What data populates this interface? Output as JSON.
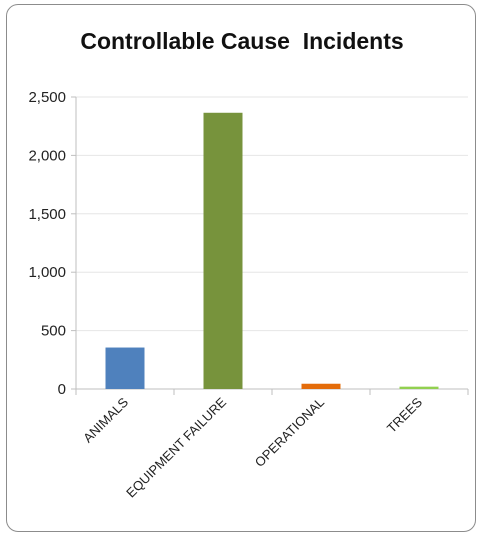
{
  "chart_data": {
    "type": "bar",
    "title": "Controllable Cause  Incidents",
    "categories": [
      "ANIMALS",
      "EQUIPMENT FAILURE",
      "OPERATIONAL",
      "TREES"
    ],
    "values": [
      355,
      2365,
      45,
      20
    ],
    "colors": [
      "#4f81bd",
      "#77933c",
      "#e46c0a",
      "#92d050"
    ],
    "ylim": [
      0,
      2500
    ],
    "yticks": [
      0,
      500,
      1000,
      1500,
      2000,
      2500
    ],
    "ytick_labels": [
      "0",
      "500",
      "1,000",
      "1,500",
      "2,000",
      "2,500"
    ],
    "grid": true,
    "legend": "none"
  }
}
